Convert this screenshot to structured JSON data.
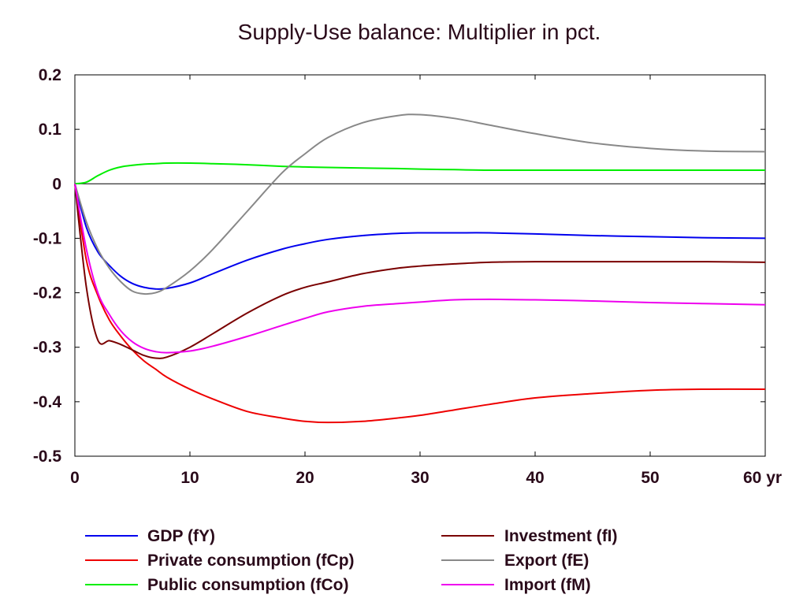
{
  "chart_data": {
    "type": "line",
    "title": "Supply-Use balance: Multiplier in pct.",
    "xlabel": "",
    "ylabel": "",
    "xlim": [
      0,
      60
    ],
    "ylim": [
      -0.5,
      0.2
    ],
    "x_ticks": [
      0,
      10,
      20,
      30,
      40,
      50,
      60
    ],
    "x_tick_labels": [
      "0",
      "10",
      "20",
      "30",
      "40",
      "50",
      "60 yr"
    ],
    "y_ticks": [
      0.2,
      0.1,
      0,
      -0.1,
      -0.2,
      -0.3,
      -0.4,
      -0.5
    ],
    "y_tick_labels": [
      "0.2",
      "0.1",
      "0",
      "-0.1",
      "-0.2",
      "-0.3",
      "-0.4",
      "-0.5"
    ],
    "grid": false,
    "zero_line": true,
    "legend_position": "bottom",
    "x": [
      0,
      1,
      2,
      3,
      4,
      5,
      6,
      7,
      8,
      10,
      12,
      15,
      18,
      20,
      22,
      25,
      28,
      30,
      33,
      36,
      40,
      45,
      50,
      55,
      60
    ],
    "series": [
      {
        "name": "GDP (fY)",
        "color": "#0000ee",
        "values": [
          0,
          -0.08,
          -0.125,
          -0.15,
          -0.17,
          -0.183,
          -0.19,
          -0.193,
          -0.192,
          -0.182,
          -0.165,
          -0.14,
          -0.12,
          -0.11,
          -0.102,
          -0.095,
          -0.091,
          -0.09,
          -0.09,
          -0.09,
          -0.092,
          -0.095,
          -0.097,
          -0.099,
          -0.1
        ]
      },
      {
        "name": "Private consumption (fCp)",
        "color": "#ee0000",
        "values": [
          0,
          -0.14,
          -0.205,
          -0.25,
          -0.28,
          -0.305,
          -0.325,
          -0.34,
          -0.355,
          -0.377,
          -0.395,
          -0.418,
          -0.43,
          -0.436,
          -0.438,
          -0.436,
          -0.43,
          -0.425,
          -0.415,
          -0.405,
          -0.393,
          -0.385,
          -0.379,
          -0.377,
          -0.377
        ]
      },
      {
        "name": "Public consumption (fCo)",
        "color": "#00ee00",
        "values": [
          0,
          0.003,
          0.015,
          0.025,
          0.031,
          0.034,
          0.036,
          0.037,
          0.038,
          0.038,
          0.037,
          0.035,
          0.032,
          0.031,
          0.03,
          0.029,
          0.028,
          0.027,
          0.026,
          0.025,
          0.025,
          0.025,
          0.025,
          0.025,
          0.025
        ]
      },
      {
        "name": "Investment (fI)",
        "color": "#7a0000",
        "values": [
          0,
          -0.19,
          -0.287,
          -0.288,
          -0.295,
          -0.305,
          -0.315,
          -0.32,
          -0.318,
          -0.3,
          -0.275,
          -0.237,
          -0.205,
          -0.19,
          -0.18,
          -0.165,
          -0.155,
          -0.151,
          -0.147,
          -0.144,
          -0.143,
          -0.143,
          -0.143,
          -0.143,
          -0.144
        ]
      },
      {
        "name": "Export (fE)",
        "color": "#888888",
        "values": [
          0,
          -0.07,
          -0.12,
          -0.155,
          -0.18,
          -0.197,
          -0.202,
          -0.2,
          -0.19,
          -0.16,
          -0.12,
          -0.05,
          0.02,
          0.055,
          0.085,
          0.112,
          0.125,
          0.127,
          0.12,
          0.108,
          0.092,
          0.075,
          0.065,
          0.06,
          0.059
        ]
      },
      {
        "name": "Import (fM)",
        "color": "#ee00ee",
        "values": [
          0,
          -0.12,
          -0.2,
          -0.24,
          -0.27,
          -0.29,
          -0.302,
          -0.308,
          -0.31,
          -0.307,
          -0.298,
          -0.28,
          -0.26,
          -0.247,
          -0.235,
          -0.225,
          -0.22,
          -0.217,
          -0.213,
          -0.212,
          -0.213,
          -0.215,
          -0.218,
          -0.22,
          -0.222
        ]
      }
    ]
  }
}
